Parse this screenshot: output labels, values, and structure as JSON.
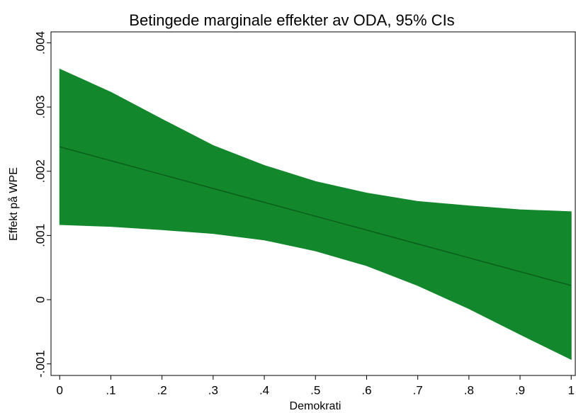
{
  "chart_data": {
    "type": "line",
    "title": "Betingede marginale effekter av ODA, 95% CIs",
    "xlabel": "Demokrati",
    "ylabel": "Effekt på WPE",
    "x": [
      0,
      0.1,
      0.2,
      0.3,
      0.4,
      0.5,
      0.6,
      0.7,
      0.8,
      0.9,
      1
    ],
    "series": [
      {
        "color": "#0b5e1c",
        "values": [
          0.00238,
          0.002164,
          0.001948,
          0.001732,
          0.001516,
          0.0013,
          0.001084,
          0.000868,
          0.000652,
          0.000436,
          0.00022
        ]
      }
    ],
    "band": {
      "color": "#12872c",
      "upper": [
        0.00359,
        0.00323,
        0.00281,
        0.0024,
        0.00209,
        0.00184,
        0.00166,
        0.00153,
        0.00146,
        0.0014,
        0.00137
      ],
      "lower": [
        0.00117,
        0.00114,
        0.00109,
        0.00103,
        0.00093,
        0.00076,
        0.00053,
        0.00022,
        -0.00014,
        -0.00054,
        -0.00093
      ]
    },
    "xlim": [
      -0.017,
      1.008
    ],
    "ylim": [
      -0.00118,
      0.00417
    ],
    "xticks": [
      0,
      {
        "value": 0.1,
        "label": ".1"
      },
      {
        "value": 0.2,
        "label": ".2"
      },
      {
        "value": 0.3,
        "label": ".3"
      },
      {
        "value": 0.4,
        "label": ".4"
      },
      {
        "value": 0.5,
        "label": ".5"
      },
      {
        "value": 0.6,
        "label": ".6"
      },
      {
        "value": 0.7,
        "label": ".7"
      },
      {
        "value": 0.8,
        "label": ".8"
      },
      {
        "value": 0.9,
        "label": ".9"
      },
      1
    ],
    "yticks": [
      {
        "value": -0.001,
        "label": "-.001"
      },
      0,
      {
        "value": 0.001,
        "label": ".001"
      },
      {
        "value": 0.002,
        "label": ".002"
      },
      {
        "value": 0.003,
        "label": ".003"
      },
      {
        "value": 0.004,
        "label": ".004"
      }
    ]
  }
}
